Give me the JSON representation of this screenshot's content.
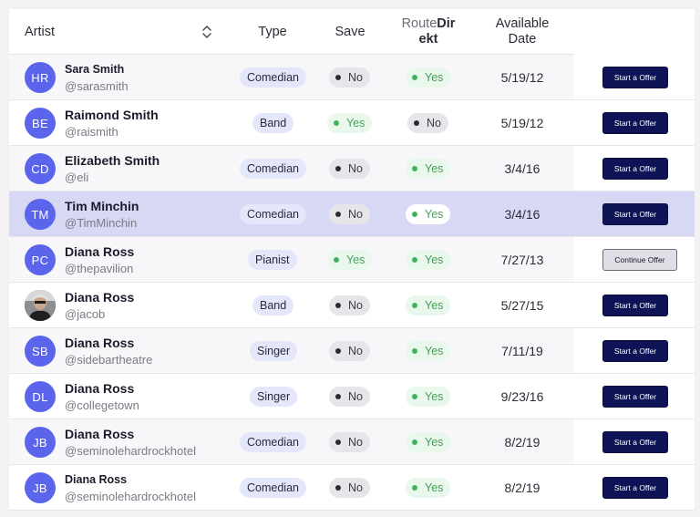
{
  "header": {
    "artist": "Artist",
    "type": "Type",
    "save": "Save",
    "route_a": "Route",
    "route_b": "Dir",
    "route_c": "ekt",
    "date_a": "Available",
    "date_b": "Date",
    "sort_icon": "sort-updown-icon"
  },
  "rows": [
    {
      "initials": "HR",
      "name": "Sara Smith",
      "handle": "@sarasmith",
      "type": "Comedian",
      "save": "No",
      "route": "Yes",
      "date": "5/19/12",
      "action": "Start a Offer"
    },
    {
      "initials": "BE",
      "name": "Raimond Smith",
      "handle": "@raismith",
      "type": "Band",
      "save": "Yes",
      "route": "No",
      "date": "5/19/12",
      "action": "Start a Offer"
    },
    {
      "initials": "CD",
      "name": "Elizabeth Smith",
      "handle": "@eli",
      "type": "Comedian",
      "save": "No",
      "route": "Yes",
      "date": "3/4/16",
      "action": "Start a Offer"
    },
    {
      "initials": "TM",
      "name": "Tim Minchin",
      "handle": "@TimMinchin",
      "type": "Comedian",
      "save": "No",
      "route": "Yes",
      "date": "3/4/16",
      "action": "Start a Offer"
    },
    {
      "initials": "PC",
      "name": "Diana Ross",
      "handle": "@thepavilion",
      "type": "Pianist",
      "save": "Yes",
      "route": "Yes",
      "date": "7/27/13",
      "action": "Continue Offer"
    },
    {
      "initials": "",
      "name": "Diana Ross",
      "handle": "@jacob",
      "type": "Band",
      "save": "No",
      "route": "Yes",
      "date": "5/27/15",
      "action": "Start a Offer"
    },
    {
      "initials": "SB",
      "name": "Diana Ross",
      "handle": "@sidebartheatre",
      "type": "Singer",
      "save": "No",
      "route": "Yes",
      "date": "7/11/19",
      "action": "Start a Offer"
    },
    {
      "initials": "DL",
      "name": "Diana Ross",
      "handle": "@collegetown",
      "type": "Singer",
      "save": "No",
      "route": "Yes",
      "date": "9/23/16",
      "action": "Start a Offer"
    },
    {
      "initials": "JB",
      "name": "Diana Ross",
      "handle": "@seminolehardrockhotel",
      "type": "Comedian",
      "save": "No",
      "route": "Yes",
      "date": "8/2/19",
      "action": "Start a Offer"
    },
    {
      "initials": "JB",
      "name": "Diana Ross",
      "handle": "@seminolehardrockhotel",
      "type": "Comedian",
      "save": "No",
      "route": "Yes",
      "date": "8/2/19",
      "action": "Start a Offer"
    }
  ],
  "colors": {
    "accent": "#5b65ec",
    "button": "#0e1356",
    "selected_row": "#d6d8f4",
    "yes": "#43b25e"
  }
}
